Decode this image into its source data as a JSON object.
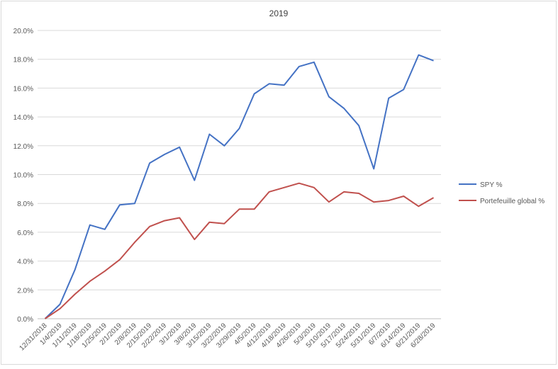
{
  "chart_data": {
    "type": "line",
    "title": "2019",
    "xlabel": "",
    "ylabel": "",
    "ylim": [
      0,
      0.2
    ],
    "y_ticks": [
      "0.0%",
      "2.0%",
      "4.0%",
      "6.0%",
      "8.0%",
      "10.0%",
      "12.0%",
      "14.0%",
      "16.0%",
      "18.0%",
      "20.0%"
    ],
    "grid": true,
    "legend_position": "right",
    "categories": [
      "12/31/2018",
      "1/4/2019",
      "1/11/2019",
      "1/18/2019",
      "1/25/2019",
      "2/1/2019",
      "2/8/2019",
      "2/15/2019",
      "2/22/2019",
      "3/1/2019",
      "3/8/2019",
      "3/15/2019",
      "3/22/2019",
      "3/29/2019",
      "4/5/2019",
      "4/12/2019",
      "4/18/2019",
      "4/26/2019",
      "5/3/2019",
      "5/10/2019",
      "5/17/2019",
      "5/24/2019",
      "5/31/2019",
      "6/7/2019",
      "6/14/2019",
      "6/21/2019",
      "6/28/2019"
    ],
    "series": [
      {
        "name": "SPY %",
        "color": "#4472c4",
        "values": [
          0.0,
          0.01,
          0.034,
          0.065,
          0.062,
          0.079,
          0.08,
          0.108,
          0.114,
          0.119,
          0.096,
          0.128,
          0.12,
          0.132,
          0.156,
          0.163,
          0.162,
          0.175,
          0.178,
          0.154,
          0.146,
          0.134,
          0.104,
          0.153,
          0.159,
          0.183,
          0.179
        ]
      },
      {
        "name": "Portefeuille global %",
        "color": "#c0504d",
        "values": [
          0.0,
          0.007,
          0.017,
          0.026,
          0.033,
          0.041,
          0.053,
          0.064,
          0.068,
          0.07,
          0.055,
          0.067,
          0.066,
          0.076,
          0.076,
          0.088,
          0.091,
          0.094,
          0.091,
          0.081,
          0.088,
          0.087,
          0.081,
          0.082,
          0.085,
          0.078,
          0.084
        ]
      }
    ]
  }
}
